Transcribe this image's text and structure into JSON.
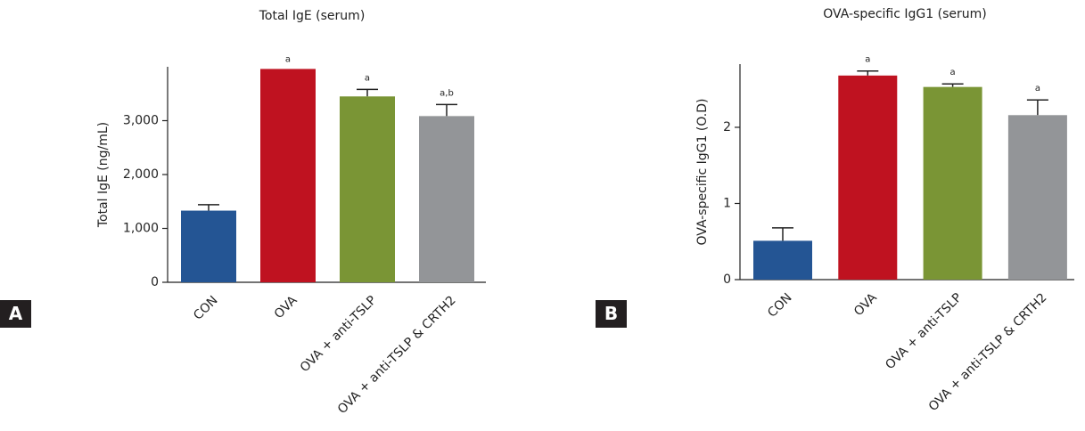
{
  "chart_data": [
    {
      "type": "bar",
      "panel_label": "A",
      "title": "Total IgE (serum)",
      "y_label": "Total IgE (ng/mL)",
      "categories": [
        "CON",
        "OVA",
        "OVA + anti-TSLP",
        "OVA + anti-TSLP & CRTH2"
      ],
      "values": [
        1330,
        3960,
        3450,
        3085
      ],
      "errors": [
        110,
        null,
        130,
        215
      ],
      "annotations": [
        null,
        "a",
        "a",
        "a,b"
      ],
      "colors": [
        "#245594",
        "#bf1220",
        "#7a9535",
        "#939598"
      ],
      "ylim": [
        0,
        4000
      ],
      "yticks": [
        0,
        {
          "value": 1000,
          "label": "1,000"
        },
        {
          "value": 2000,
          "label": "2,000"
        },
        {
          "value": 3000,
          "label": "3,000"
        }
      ]
    },
    {
      "type": "bar",
      "panel_label": "B",
      "title": "OVA-specific IgG1 (serum)",
      "y_label": "OVA-specific IgG1 (O.D)",
      "categories": [
        "CON",
        "OVA",
        "OVA + anti-TSLP",
        "OVA + anti-TSLP & CRTH2"
      ],
      "values": [
        0.51,
        2.68,
        2.53,
        2.16
      ],
      "errors": [
        0.17,
        0.06,
        0.04,
        0.2
      ],
      "annotations": [
        null,
        "a",
        "a",
        "a"
      ],
      "colors": [
        "#245594",
        "#bf1220",
        "#7a9535",
        "#939598"
      ],
      "ylim": [
        0,
        2.83
      ],
      "yticks": [
        0,
        1,
        2
      ]
    }
  ]
}
